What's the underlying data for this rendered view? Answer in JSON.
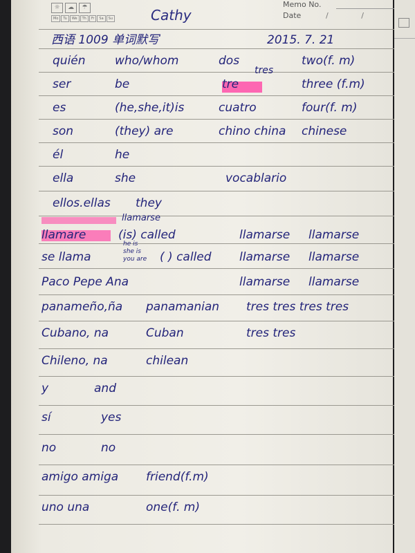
{
  "header": {
    "memo_label": "Memo No.",
    "date_label": "Date",
    "date_slashes": "/ /",
    "weather_icons": [
      "sun-icon",
      "cloud-icon",
      "rain-icon"
    ],
    "days": [
      "Mo",
      "Tu",
      "We",
      "Th",
      "Fr",
      "Sa",
      "Su"
    ],
    "name": "Cathy"
  },
  "title_row": {
    "left": "西语 1009 单词默写",
    "date": "2015. 7. 21"
  },
  "rows": [
    [
      "quién",
      "who/whom",
      "dos",
      "two(f. m)"
    ],
    [
      "ser",
      "be",
      "tre",
      "three (f.m)"
    ],
    [
      "es",
      "(he,she,it)is",
      "cuatro",
      "four(f. m)"
    ],
    [
      "son",
      "(they) are",
      "chino china",
      "chinese"
    ],
    [
      "él",
      "he",
      "",
      ""
    ],
    [
      "ella",
      "she",
      "vocablario",
      ""
    ],
    [
      "ellos.ellas",
      "they",
      "",
      ""
    ],
    [
      "llamare",
      "(is) called",
      "llamarse",
      "llamarse"
    ],
    [
      "se llama",
      "( ) called",
      "llamarse",
      "llamarse"
    ],
    [
      "Paco Pepe Ana",
      "",
      "llamarse",
      "llamarse"
    ],
    [
      "panameño,ña",
      "panamanian",
      "tres tres tres tres",
      ""
    ],
    [
      "Cubano, na",
      "Cuban",
      "tres tres",
      ""
    ],
    [
      "Chileno, na",
      "chilean",
      "",
      ""
    ],
    [
      "y",
      "and",
      "",
      ""
    ],
    [
      "sí",
      "yes",
      "",
      ""
    ],
    [
      "no",
      "no",
      "",
      ""
    ],
    [
      "amigo amiga",
      "friend(f.m)",
      "",
      ""
    ],
    [
      "uno una",
      "one(f. m)",
      "",
      ""
    ]
  ],
  "annotations": {
    "tres_above": "tres",
    "llamarse_above": "llamarse",
    "he_is": "he is",
    "she_is": "she is",
    "you_are": "you are"
  },
  "colors": {
    "ink": "#23247a",
    "highlighter": "#ff4fa8",
    "paper": "#f1efe8"
  }
}
